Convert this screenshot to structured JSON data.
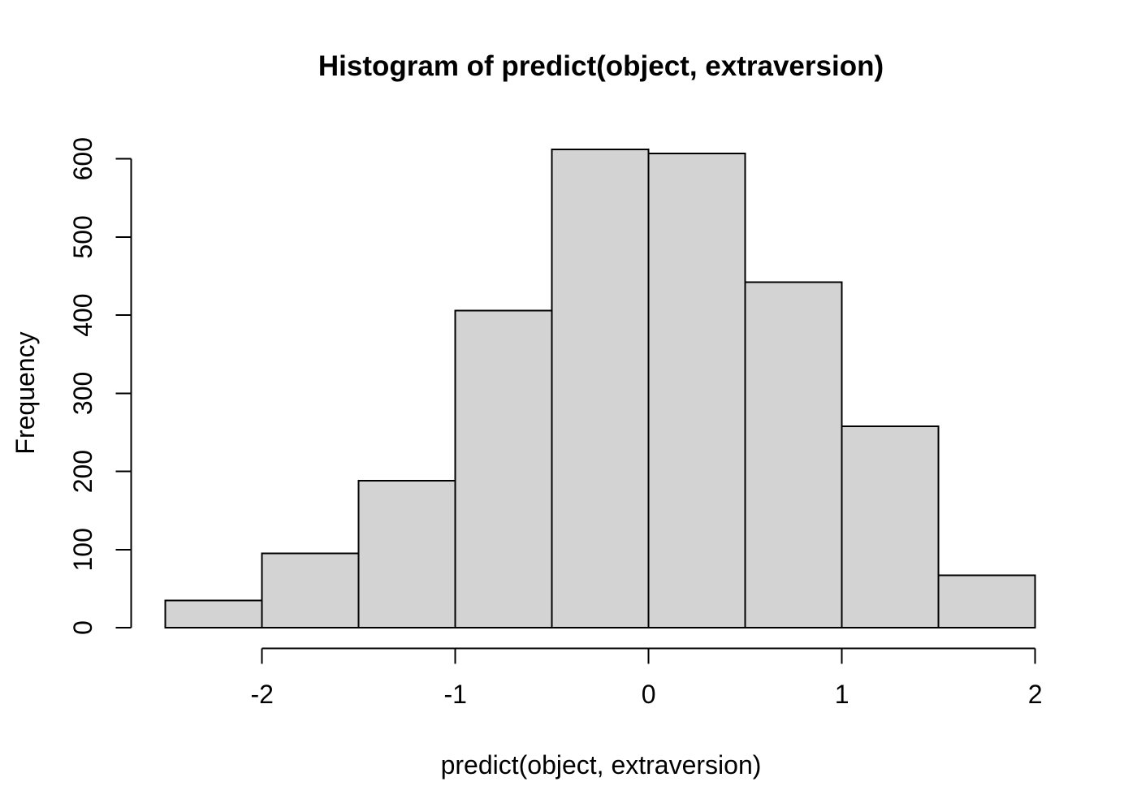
{
  "chart_data": {
    "type": "bar",
    "subtype": "histogram",
    "title": "Histogram of predict(object, extraversion)",
    "xlabel": "predict(object, extraversion)",
    "ylabel": "Frequency",
    "bin_edges": [
      -2.5,
      -2.0,
      -1.5,
      -1.0,
      -0.5,
      0.0,
      0.5,
      1.0,
      1.5,
      2.0
    ],
    "counts": [
      35,
      95,
      188,
      406,
      612,
      607,
      442,
      258,
      67
    ],
    "x_ticks": [
      "-2",
      "-1",
      "0",
      "1",
      "2"
    ],
    "x_tick_values": [
      -2,
      -1,
      0,
      1,
      2
    ],
    "y_ticks": [
      "0",
      "100",
      "200",
      "300",
      "400",
      "500",
      "600"
    ],
    "y_tick_values": [
      0,
      100,
      200,
      300,
      400,
      500,
      600
    ],
    "xlim": [
      -2.5,
      2.0
    ],
    "ylim": [
      0,
      612
    ],
    "grid": false,
    "legend": null,
    "colors": {
      "bar_fill": "#d3d3d3",
      "bar_border": "#000000",
      "axis": "#000000",
      "text": "#000000",
      "background": "#ffffff"
    }
  }
}
